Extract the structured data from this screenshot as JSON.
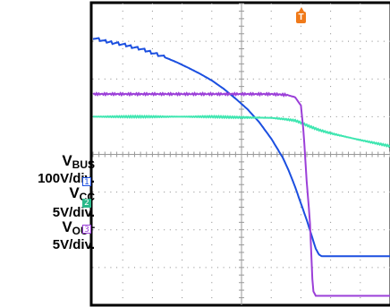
{
  "chart_data": {
    "type": "line",
    "title": "",
    "grid": true,
    "trigger_marker": {
      "label": "T",
      "color": "#f07a1a"
    },
    "series": [
      {
        "name": "VBUS",
        "channel": "1",
        "scale": "100V/div.",
        "color": "#1b4fe0",
        "x": [
          0.0,
          0.4,
          0.8,
          1.2,
          1.6,
          2.0,
          2.4,
          2.8,
          3.2,
          3.6,
          4.0,
          4.4,
          4.8,
          5.2,
          5.6,
          6.0,
          6.4,
          6.6,
          6.8,
          7.0,
          7.2,
          7.3,
          7.4,
          7.5,
          7.6,
          7.7,
          8.0,
          9.0,
          10.0
        ],
        "y": [
          3.1,
          3.0,
          2.95,
          2.88,
          2.8,
          2.7,
          2.58,
          2.45,
          2.3,
          2.14,
          1.96,
          1.74,
          1.48,
          1.2,
          0.85,
          0.42,
          -0.1,
          -0.45,
          -0.85,
          -1.3,
          -1.75,
          -2.0,
          -2.25,
          -2.5,
          -2.65,
          -2.7,
          -2.7,
          -2.7,
          -2.7
        ]
      },
      {
        "name": "VCC",
        "channel": "2",
        "scale": "5V/div.",
        "color": "#3ee6b0",
        "x": [
          0.0,
          2.0,
          4.0,
          5.0,
          6.0,
          6.5,
          6.8,
          7.0,
          7.3,
          7.6,
          8.0,
          8.5,
          9.0,
          9.5,
          10.0
        ],
        "y": [
          1.0,
          1.0,
          1.0,
          0.98,
          0.97,
          0.93,
          0.9,
          0.84,
          0.74,
          0.65,
          0.56,
          0.47,
          0.38,
          0.3,
          0.22
        ]
      },
      {
        "name": "VOUT",
        "channel": "3",
        "scale": "5V/div.",
        "color": "#9b3fd8",
        "x": [
          0.0,
          1.0,
          2.0,
          3.0,
          4.0,
          5.0,
          6.0,
          6.5,
          6.8,
          7.0,
          7.1,
          7.2,
          7.3,
          7.4,
          7.5,
          8.0,
          9.0,
          10.0
        ],
        "y": [
          1.6,
          1.6,
          1.6,
          1.6,
          1.6,
          1.6,
          1.6,
          1.58,
          1.52,
          1.3,
          0.5,
          -0.8,
          -1.7,
          -3.6,
          -3.75,
          -3.75,
          -3.75,
          -3.75
        ]
      }
    ]
  },
  "labels": {
    "vbus_name": "V",
    "vbus_sub": "BUS",
    "vbus_scale": "100V/div.",
    "vcc_name": "V",
    "vcc_sub": "CC",
    "vcc_scale": "5V/div.",
    "vout_name": "V",
    "vout_sub": "OUT",
    "vout_scale": "5V/div."
  },
  "markers": {
    "ch1": {
      "label": "1",
      "color": "#1b4fe0"
    },
    "ch2": {
      "label": "2",
      "color": "#2ab88a"
    },
    "ch3": {
      "label": "3",
      "color": "#9b3fd8"
    }
  }
}
